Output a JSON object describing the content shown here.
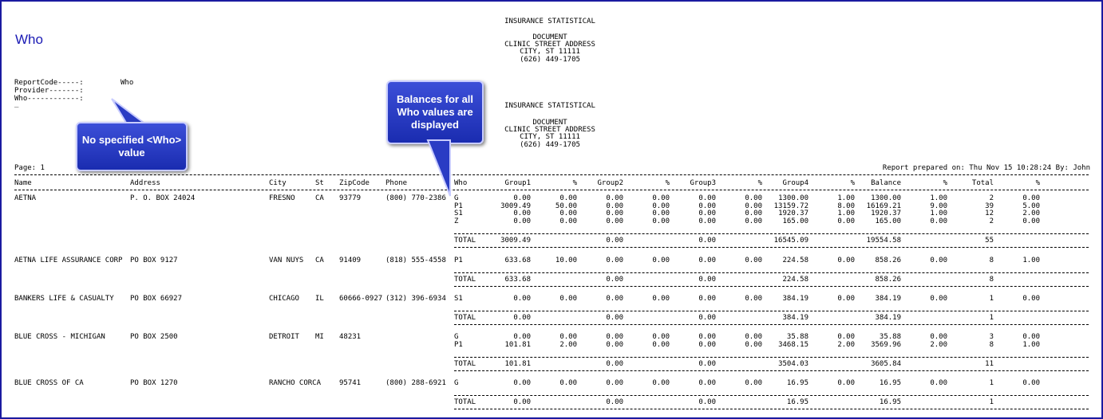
{
  "page_title": "Who",
  "report_header": {
    "line1": "INSURANCE STATISTICAL",
    "line2": "DOCUMENT",
    "line3": "CLINIC STREET ADDRESS",
    "line4": "CITY, ST 11111",
    "line5": "(626) 449-1705"
  },
  "params": {
    "report_code_label": "ReportCode-----:",
    "report_code_value": "Who",
    "provider_label": "Provider-------:",
    "who_label": "Who------------:",
    "cursor": "_"
  },
  "page_label": "Page: 1",
  "prepared": "Report prepared on: Thu Nov 15 10:28:24 By: John",
  "columns": [
    "Name",
    "Address",
    "City",
    "St",
    "ZipCode",
    "Phone",
    "Who",
    "Group1",
    "%",
    "Group2",
    "%",
    "Group3",
    "%",
    "Group4",
    "%",
    "Balance",
    "%",
    "Total",
    "%"
  ],
  "callouts": {
    "no_who": "No specified <Who> value",
    "balances": "Balances for all Who values are displayed"
  },
  "carriers": [
    {
      "name": "AETNA",
      "address": "P. O. BOX 24024",
      "city": "FRESNO",
      "st": "CA",
      "zip": "93779",
      "phone": "(800) 770-2386",
      "rows": [
        [
          "G",
          "0.00",
          "0.00",
          "0.00",
          "0.00",
          "0.00",
          "0.00",
          "1300.00",
          "1.00",
          "1300.00",
          "1.00",
          "2",
          "0.00"
        ],
        [
          "P1",
          "3009.49",
          "50.00",
          "0.00",
          "0.00",
          "0.00",
          "0.00",
          "13159.72",
          "8.00",
          "16169.21",
          "9.00",
          "39",
          "5.00"
        ],
        [
          "S1",
          "0.00",
          "0.00",
          "0.00",
          "0.00",
          "0.00",
          "0.00",
          "1920.37",
          "1.00",
          "1920.37",
          "1.00",
          "12",
          "2.00"
        ],
        [
          "Z",
          "0.00",
          "0.00",
          "0.00",
          "0.00",
          "0.00",
          "0.00",
          "165.00",
          "0.00",
          "165.00",
          "0.00",
          "2",
          "0.00"
        ]
      ],
      "total": [
        "TOTAL",
        "3009.49",
        "",
        "0.00",
        "",
        "0.00",
        "",
        "16545.09",
        "",
        "19554.58",
        "",
        "55",
        ""
      ]
    },
    {
      "name": "AETNA LIFE ASSURANCE CORP",
      "address": "PO BOX 9127",
      "city": "VAN NUYS",
      "st": "CA",
      "zip": "91409",
      "phone": "(818) 555-4558",
      "rows": [
        [
          "P1",
          "633.68",
          "10.00",
          "0.00",
          "0.00",
          "0.00",
          "0.00",
          "224.58",
          "0.00",
          "858.26",
          "0.00",
          "8",
          "1.00"
        ]
      ],
      "total": [
        "TOTAL",
        "633.68",
        "",
        "0.00",
        "",
        "0.00",
        "",
        "224.58",
        "",
        "858.26",
        "",
        "8",
        ""
      ]
    },
    {
      "name": "BANKERS LIFE & CASUALTY",
      "address": "PO BOX 66927",
      "city": "CHICAGO",
      "st": "IL",
      "zip": "60666-0927",
      "phone": "(312) 396-6934",
      "rows": [
        [
          "S1",
          "0.00",
          "0.00",
          "0.00",
          "0.00",
          "0.00",
          "0.00",
          "384.19",
          "0.00",
          "384.19",
          "0.00",
          "1",
          "0.00"
        ]
      ],
      "total": [
        "TOTAL",
        "0.00",
        "",
        "0.00",
        "",
        "0.00",
        "",
        "384.19",
        "",
        "384.19",
        "",
        "1",
        ""
      ]
    },
    {
      "name": "BLUE CROSS - MICHIGAN",
      "address": "PO BOX 2500",
      "city": "DETROIT",
      "st": "MI",
      "zip": "48231",
      "phone": "",
      "rows": [
        [
          "G",
          "0.00",
          "0.00",
          "0.00",
          "0.00",
          "0.00",
          "0.00",
          "35.88",
          "0.00",
          "35.88",
          "0.00",
          "3",
          "0.00"
        ],
        [
          "P1",
          "101.81",
          "2.00",
          "0.00",
          "0.00",
          "0.00",
          "0.00",
          "3468.15",
          "2.00",
          "3569.96",
          "2.00",
          "8",
          "1.00"
        ]
      ],
      "total": [
        "TOTAL",
        "101.81",
        "",
        "0.00",
        "",
        "0.00",
        "",
        "3504.03",
        "",
        "3605.84",
        "",
        "11",
        ""
      ]
    },
    {
      "name": "BLUE CROSS OF CA",
      "address": "PO BOX 1270",
      "city": "RANCHO CORCA",
      "st": "",
      "zip": "95741",
      "phone": "(800) 288-6921",
      "rows": [
        [
          "G",
          "0.00",
          "0.00",
          "0.00",
          "0.00",
          "0.00",
          "0.00",
          "16.95",
          "0.00",
          "16.95",
          "0.00",
          "1",
          "0.00"
        ]
      ],
      "total": [
        "TOTAL",
        "0.00",
        "",
        "0.00",
        "",
        "0.00",
        "",
        "16.95",
        "",
        "16.95",
        "",
        "1",
        ""
      ]
    }
  ]
}
